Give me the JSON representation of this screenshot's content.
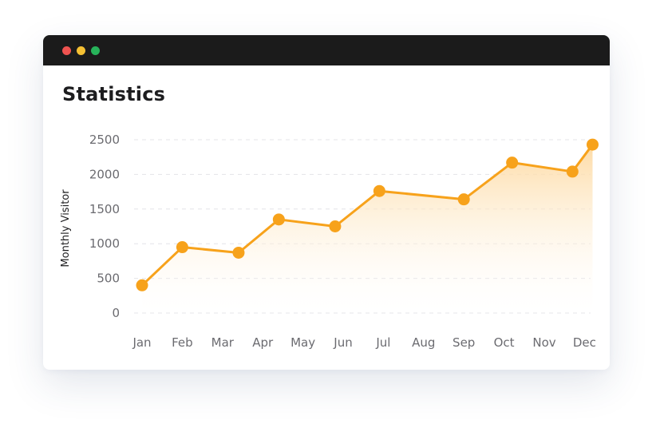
{
  "window": {
    "controls": [
      {
        "name": "close",
        "color": "#ef5350"
      },
      {
        "name": "minimize",
        "color": "#f5c033"
      },
      {
        "name": "maximize",
        "color": "#27b35a"
      }
    ]
  },
  "header": {
    "title": "Statistics"
  },
  "colors": {
    "line": "#f7a21b",
    "fill_top": "#fdd9a0",
    "fill_bottom": "#ffffff",
    "grid": "#e4e4e8"
  },
  "chart_data": {
    "type": "area",
    "title": "",
    "xlabel": "",
    "ylabel": "Monthly Visitor",
    "categories": [
      "Jan",
      "Feb",
      "Mar",
      "Apr",
      "May",
      "Jun",
      "Jul",
      "Aug",
      "Sep",
      "Oct",
      "Nov",
      "Dec"
    ],
    "series": [
      {
        "values": [
          400,
          950,
          870,
          1350,
          1250,
          null,
          1760,
          null,
          1640,
          2170,
          2040,
          2430
        ],
        "line_x": [
          0.0,
          1.0,
          2.4,
          3.4,
          4.8,
          null,
          5.9,
          null,
          8.0,
          9.2,
          10.7,
          11.2
        ]
      }
    ],
    "yticks": [
      0,
      500,
      1000,
      1500,
      2000,
      2500
    ],
    "ylim": [
      0,
      2500
    ],
    "grid": true,
    "legend": "none"
  }
}
